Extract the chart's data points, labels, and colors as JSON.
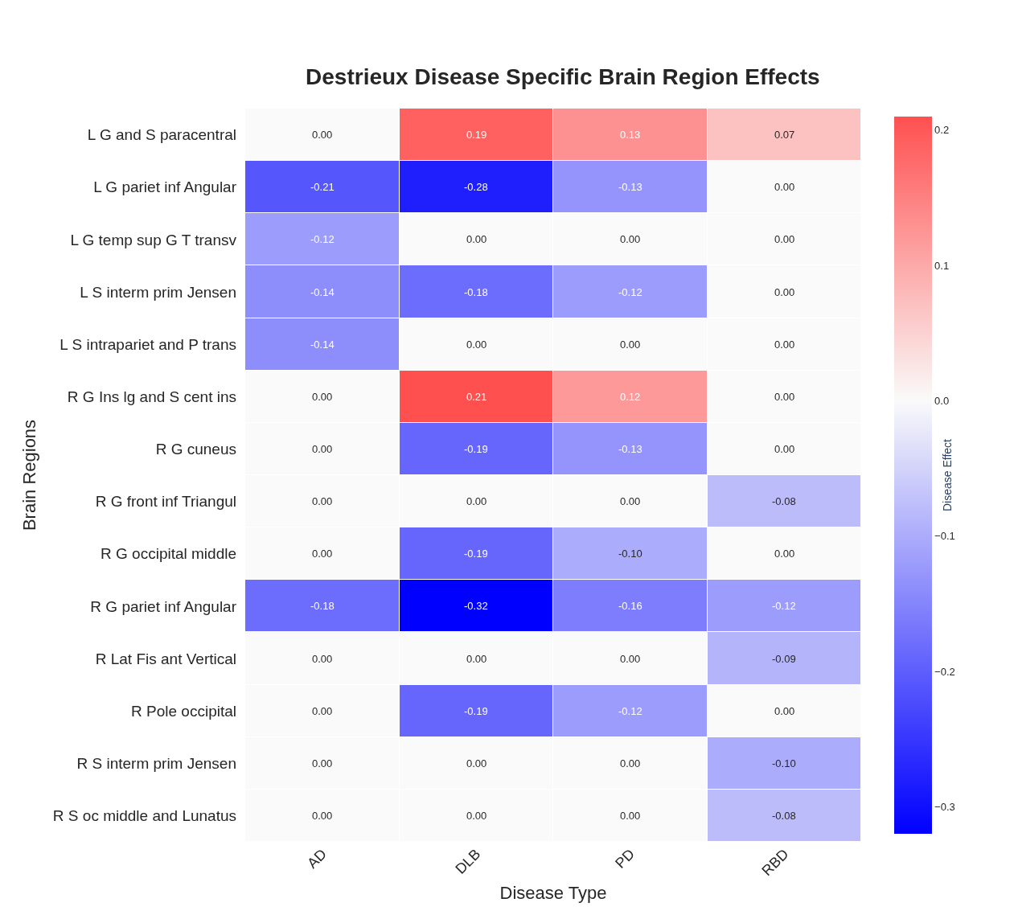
{
  "chart_data": {
    "type": "heatmap",
    "title": "Destrieux Disease Specific Brain Region Effects",
    "xlabel": "Disease Type",
    "ylabel": "Brain Regions",
    "clabel": "Disease Effect",
    "categories": [
      "AD",
      "DLB",
      "PD",
      "RBD"
    ],
    "y_categories": [
      "L G and S paracentral",
      "L G pariet inf Angular",
      "L G temp sup G T transv",
      "L S interm prim Jensen",
      "L S intrapariet and P trans",
      "R G Ins lg and S cent ins",
      "R G cuneus",
      "R G front inf Triangul",
      "R G occipital middle",
      "R G pariet inf Angular",
      "R Lat Fis ant Vertical",
      "R Pole occipital",
      "R S interm prim Jensen",
      "R S oc middle and Lunatus"
    ],
    "cells": [
      [
        0,
        0.19,
        0.13,
        0.07
      ],
      [
        -0.21,
        -0.28,
        -0.13,
        0
      ],
      [
        -0.12,
        0,
        0,
        0
      ],
      [
        -0.14,
        -0.18,
        -0.12,
        0
      ],
      [
        -0.14,
        0,
        0,
        0
      ],
      [
        0,
        0.21,
        0.12,
        0
      ],
      [
        0,
        -0.19,
        -0.13,
        0
      ],
      [
        0,
        0,
        0,
        -0.08
      ],
      [
        0,
        -0.19,
        -0.1,
        0
      ],
      [
        -0.18,
        -0.32,
        -0.16,
        -0.12
      ],
      [
        0,
        0,
        0,
        -0.09
      ],
      [
        0,
        -0.19,
        -0.12,
        0
      ],
      [
        0,
        0,
        0,
        -0.1
      ],
      [
        0,
        0,
        0,
        -0.08
      ]
    ],
    "cell_labels": [
      [
        "0.00",
        "0.19",
        "0.13",
        "0.07"
      ],
      [
        "-0.21",
        "-0.28",
        "-0.13",
        "0.00"
      ],
      [
        "-0.12",
        "0.00",
        "0.00",
        "0.00"
      ],
      [
        "-0.14",
        "-0.18",
        "-0.12",
        "0.00"
      ],
      [
        "-0.14",
        "0.00",
        "0.00",
        "0.00"
      ],
      [
        "0.00",
        "0.21",
        "0.12",
        "0.00"
      ],
      [
        "0.00",
        "-0.19",
        "-0.13",
        "0.00"
      ],
      [
        "0.00",
        "0.00",
        "0.00",
        "-0.08"
      ],
      [
        "0.00",
        "-0.19",
        "-0.10",
        "0.00"
      ],
      [
        "-0.18",
        "-0.32",
        "-0.16",
        "-0.12"
      ],
      [
        "0.00",
        "0.00",
        "0.00",
        "-0.09"
      ],
      [
        "0.00",
        "-0.19",
        "-0.12",
        "0.00"
      ],
      [
        "0.00",
        "0.00",
        "0.00",
        "-0.10"
      ],
      [
        "0.00",
        "0.00",
        "0.00",
        "-0.08"
      ]
    ],
    "colors": [
      "#0000ff",
      "#fafafa",
      "#ff5050"
    ],
    "clim": [
      -0.32,
      0.21
    ],
    "cticks": [
      {
        "value": 0.2,
        "label": "0.2"
      },
      {
        "value": 0.1,
        "label": "0.1"
      },
      {
        "value": 0.0,
        "label": "0.0"
      },
      {
        "value": -0.1,
        "label": "−0.1"
      },
      {
        "value": -0.2,
        "label": "−0.2"
      },
      {
        "value": -0.3,
        "label": "−0.3"
      }
    ]
  }
}
